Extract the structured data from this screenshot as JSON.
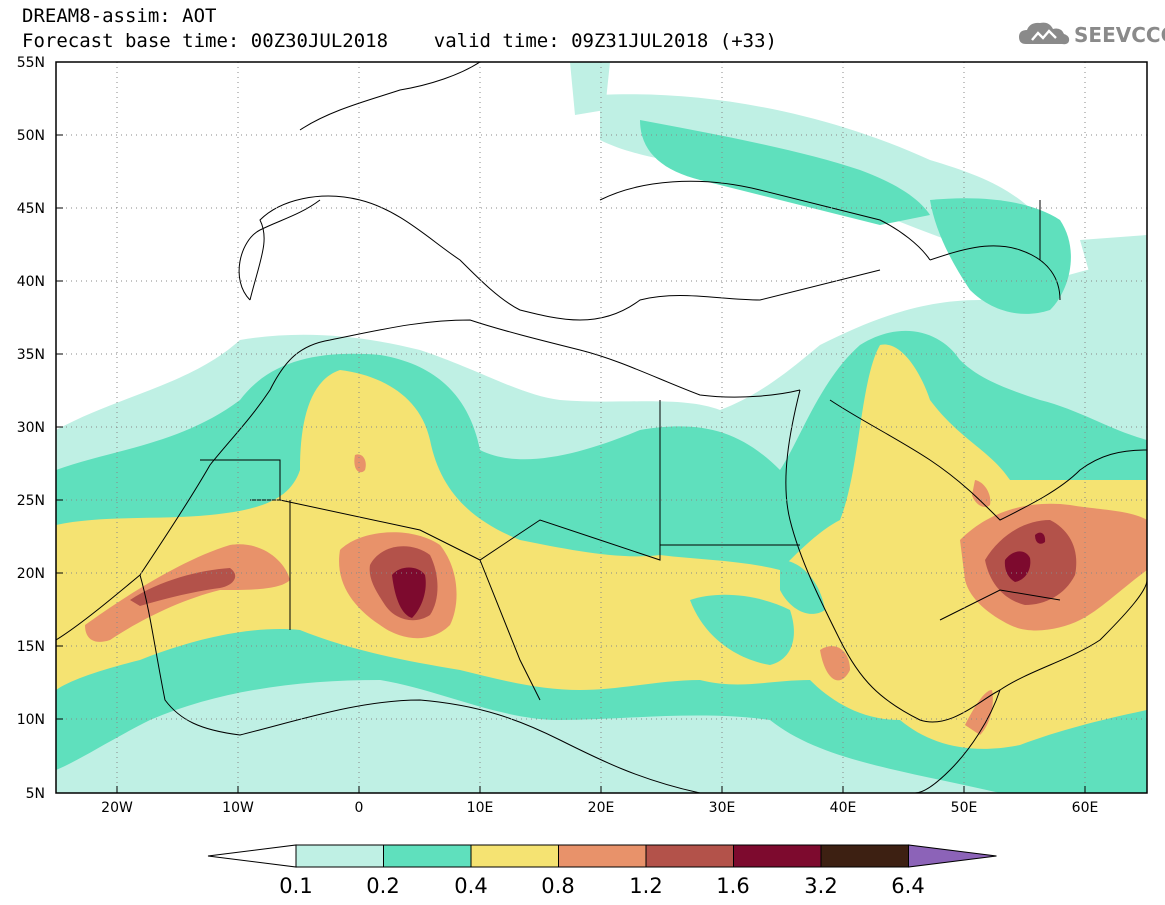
{
  "header": {
    "title": "DREAM8-assim: AOT",
    "subtitle": "Forecast base time: 00Z30JUL2018    valid time: 09Z31JUL2018 (+33)"
  },
  "logo": {
    "text": "SEEVCCC",
    "icon": "cloud-icon"
  },
  "map": {
    "lat_labels": [
      "55N",
      "50N",
      "45N",
      "40N",
      "35N",
      "30N",
      "25N",
      "20N",
      "15N",
      "10N",
      "5N"
    ],
    "lon_labels": [
      "20W",
      "10W",
      "0",
      "10E",
      "20E",
      "30E",
      "40E",
      "50E",
      "60E"
    ],
    "lat_range": [
      5,
      55
    ],
    "lon_range": [
      -25,
      65
    ],
    "grid": "dotted"
  },
  "colorbar": {
    "labels": [
      "0.1",
      "0.2",
      "0.4",
      "0.8",
      "1.2",
      "1.6",
      "3.2",
      "6.4"
    ],
    "colors": [
      "#ffffff",
      "#bff0e4",
      "#5fe0bd",
      "#f5e372",
      "#e8926a",
      "#b3524a",
      "#7d0a2e",
      "#3d2012",
      "#8c63b8"
    ]
  }
}
